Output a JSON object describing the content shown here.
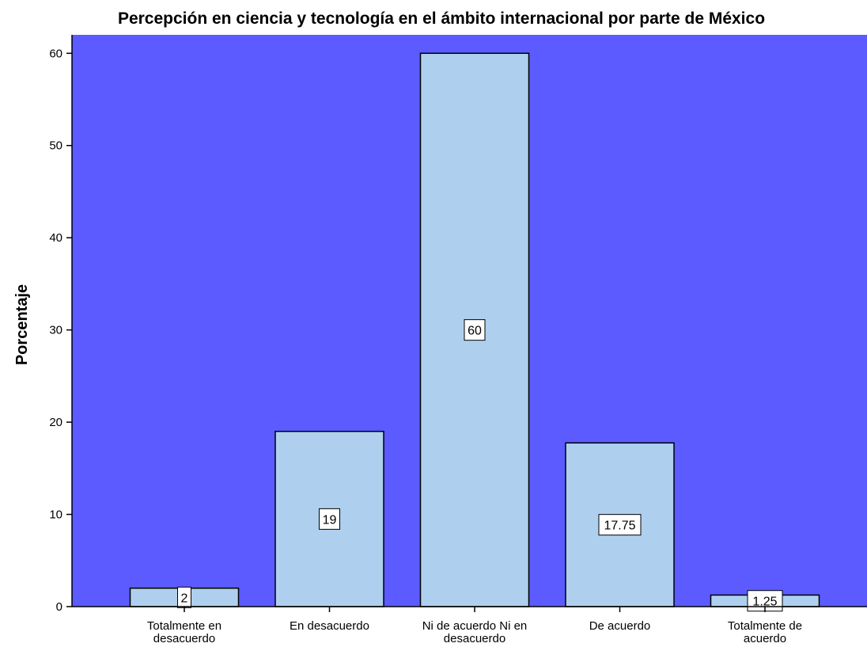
{
  "chart_data": {
    "type": "bar",
    "title": "Percepción  en ciencia y tecnología en el ámbito internacional por parte de México",
    "xlabel": "",
    "ylabel": "Porcentaje",
    "categories": [
      [
        "Totalmente en",
        "desacuerdo"
      ],
      [
        "En desacuerdo"
      ],
      [
        "Ni de acuerdo Ni en",
        "desacuerdo"
      ],
      [
        "De acuerdo"
      ],
      [
        "Totalmente de",
        "acuerdo"
      ]
    ],
    "values": [
      2,
      19,
      60,
      17.75,
      1.25
    ],
    "data_labels": [
      "2",
      "19",
      "60",
      "17.75",
      "1.25"
    ],
    "ylim": [
      0,
      62
    ],
    "yticks": [
      0,
      10,
      20,
      30,
      40,
      50,
      60
    ],
    "grid": false,
    "legend": "none",
    "colors": {
      "plot_background": "#5b5bff",
      "bar_fill": "#aed0ee",
      "bar_stroke": "#000000",
      "label_box": "#ffffff"
    }
  }
}
